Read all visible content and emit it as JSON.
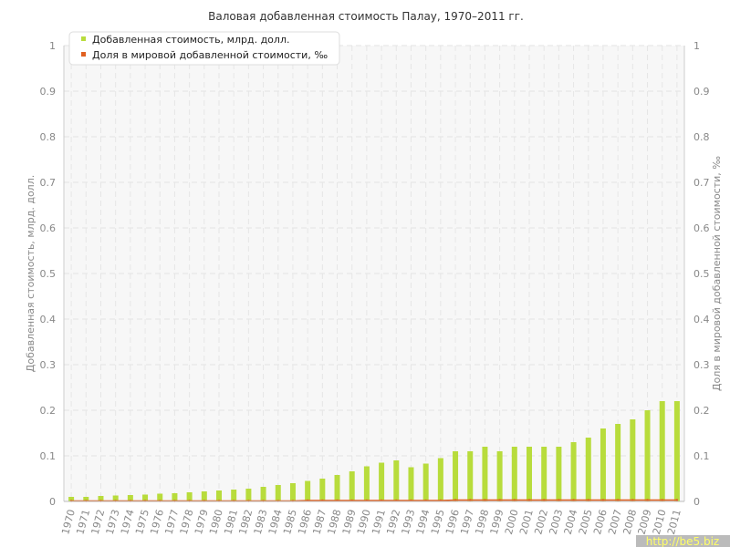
{
  "chart_data": {
    "type": "bar",
    "title": "Валовая добавленная стоимость Палау, 1970–2011 гг.",
    "ylabel": "Добавленная стоимость, млрд. долл.",
    "y2label": "Доля в мировой добавленной стоимости, ‰",
    "ylim": [
      0,
      1
    ],
    "y2lim": [
      0,
      1
    ],
    "yticks": [
      "0",
      "0.1",
      "0.2",
      "0.3",
      "0.4",
      "0.5",
      "0.6",
      "0.7",
      "0.8",
      "0.9",
      "1"
    ],
    "grid": true,
    "legend_position": "top-left",
    "categories": [
      "1970",
      "1971",
      "1972",
      "1973",
      "1974",
      "1975",
      "1976",
      "1977",
      "1978",
      "1979",
      "1980",
      "1981",
      "1982",
      "1983",
      "1984",
      "1985",
      "1986",
      "1987",
      "1988",
      "1989",
      "1990",
      "1991",
      "1992",
      "1993",
      "1994",
      "1995",
      "1996",
      "1997",
      "1998",
      "1999",
      "2000",
      "2001",
      "2002",
      "2003",
      "2004",
      "2005",
      "2006",
      "2007",
      "2008",
      "2009",
      "2010",
      "2011"
    ],
    "series": [
      {
        "name": "Добавленная стоимость, млрд. долл.",
        "type": "bar",
        "color": "#b8dc3c",
        "values": [
          0.01,
          0.01,
          0.012,
          0.013,
          0.014,
          0.015,
          0.017,
          0.018,
          0.02,
          0.022,
          0.024,
          0.026,
          0.028,
          0.032,
          0.036,
          0.04,
          0.045,
          0.05,
          0.058,
          0.066,
          0.077,
          0.085,
          0.09,
          0.075,
          0.083,
          0.095,
          0.11,
          0.11,
          0.12,
          0.11,
          0.12,
          0.12,
          0.12,
          0.12,
          0.13,
          0.14,
          0.16,
          0.17,
          0.18,
          0.2,
          0.22,
          0.22
        ]
      },
      {
        "name": "Доля в мировой добавленной стоимости, ‰",
        "type": "line",
        "color": "#e06020",
        "values": [
          0.001,
          0.001,
          0.001,
          0.001,
          0.001,
          0.001,
          0.001,
          0.001,
          0.001,
          0.001,
          0.001,
          0.001,
          0.001,
          0.001,
          0.001,
          0.001,
          0.002,
          0.002,
          0.002,
          0.002,
          0.002,
          0.002,
          0.002,
          0.002,
          0.002,
          0.002,
          0.003,
          0.003,
          0.003,
          0.003,
          0.003,
          0.003,
          0.003,
          0.003,
          0.003,
          0.003,
          0.003,
          0.003,
          0.003,
          0.003,
          0.003,
          0.003
        ]
      }
    ]
  },
  "watermark": "http://be5.biz"
}
